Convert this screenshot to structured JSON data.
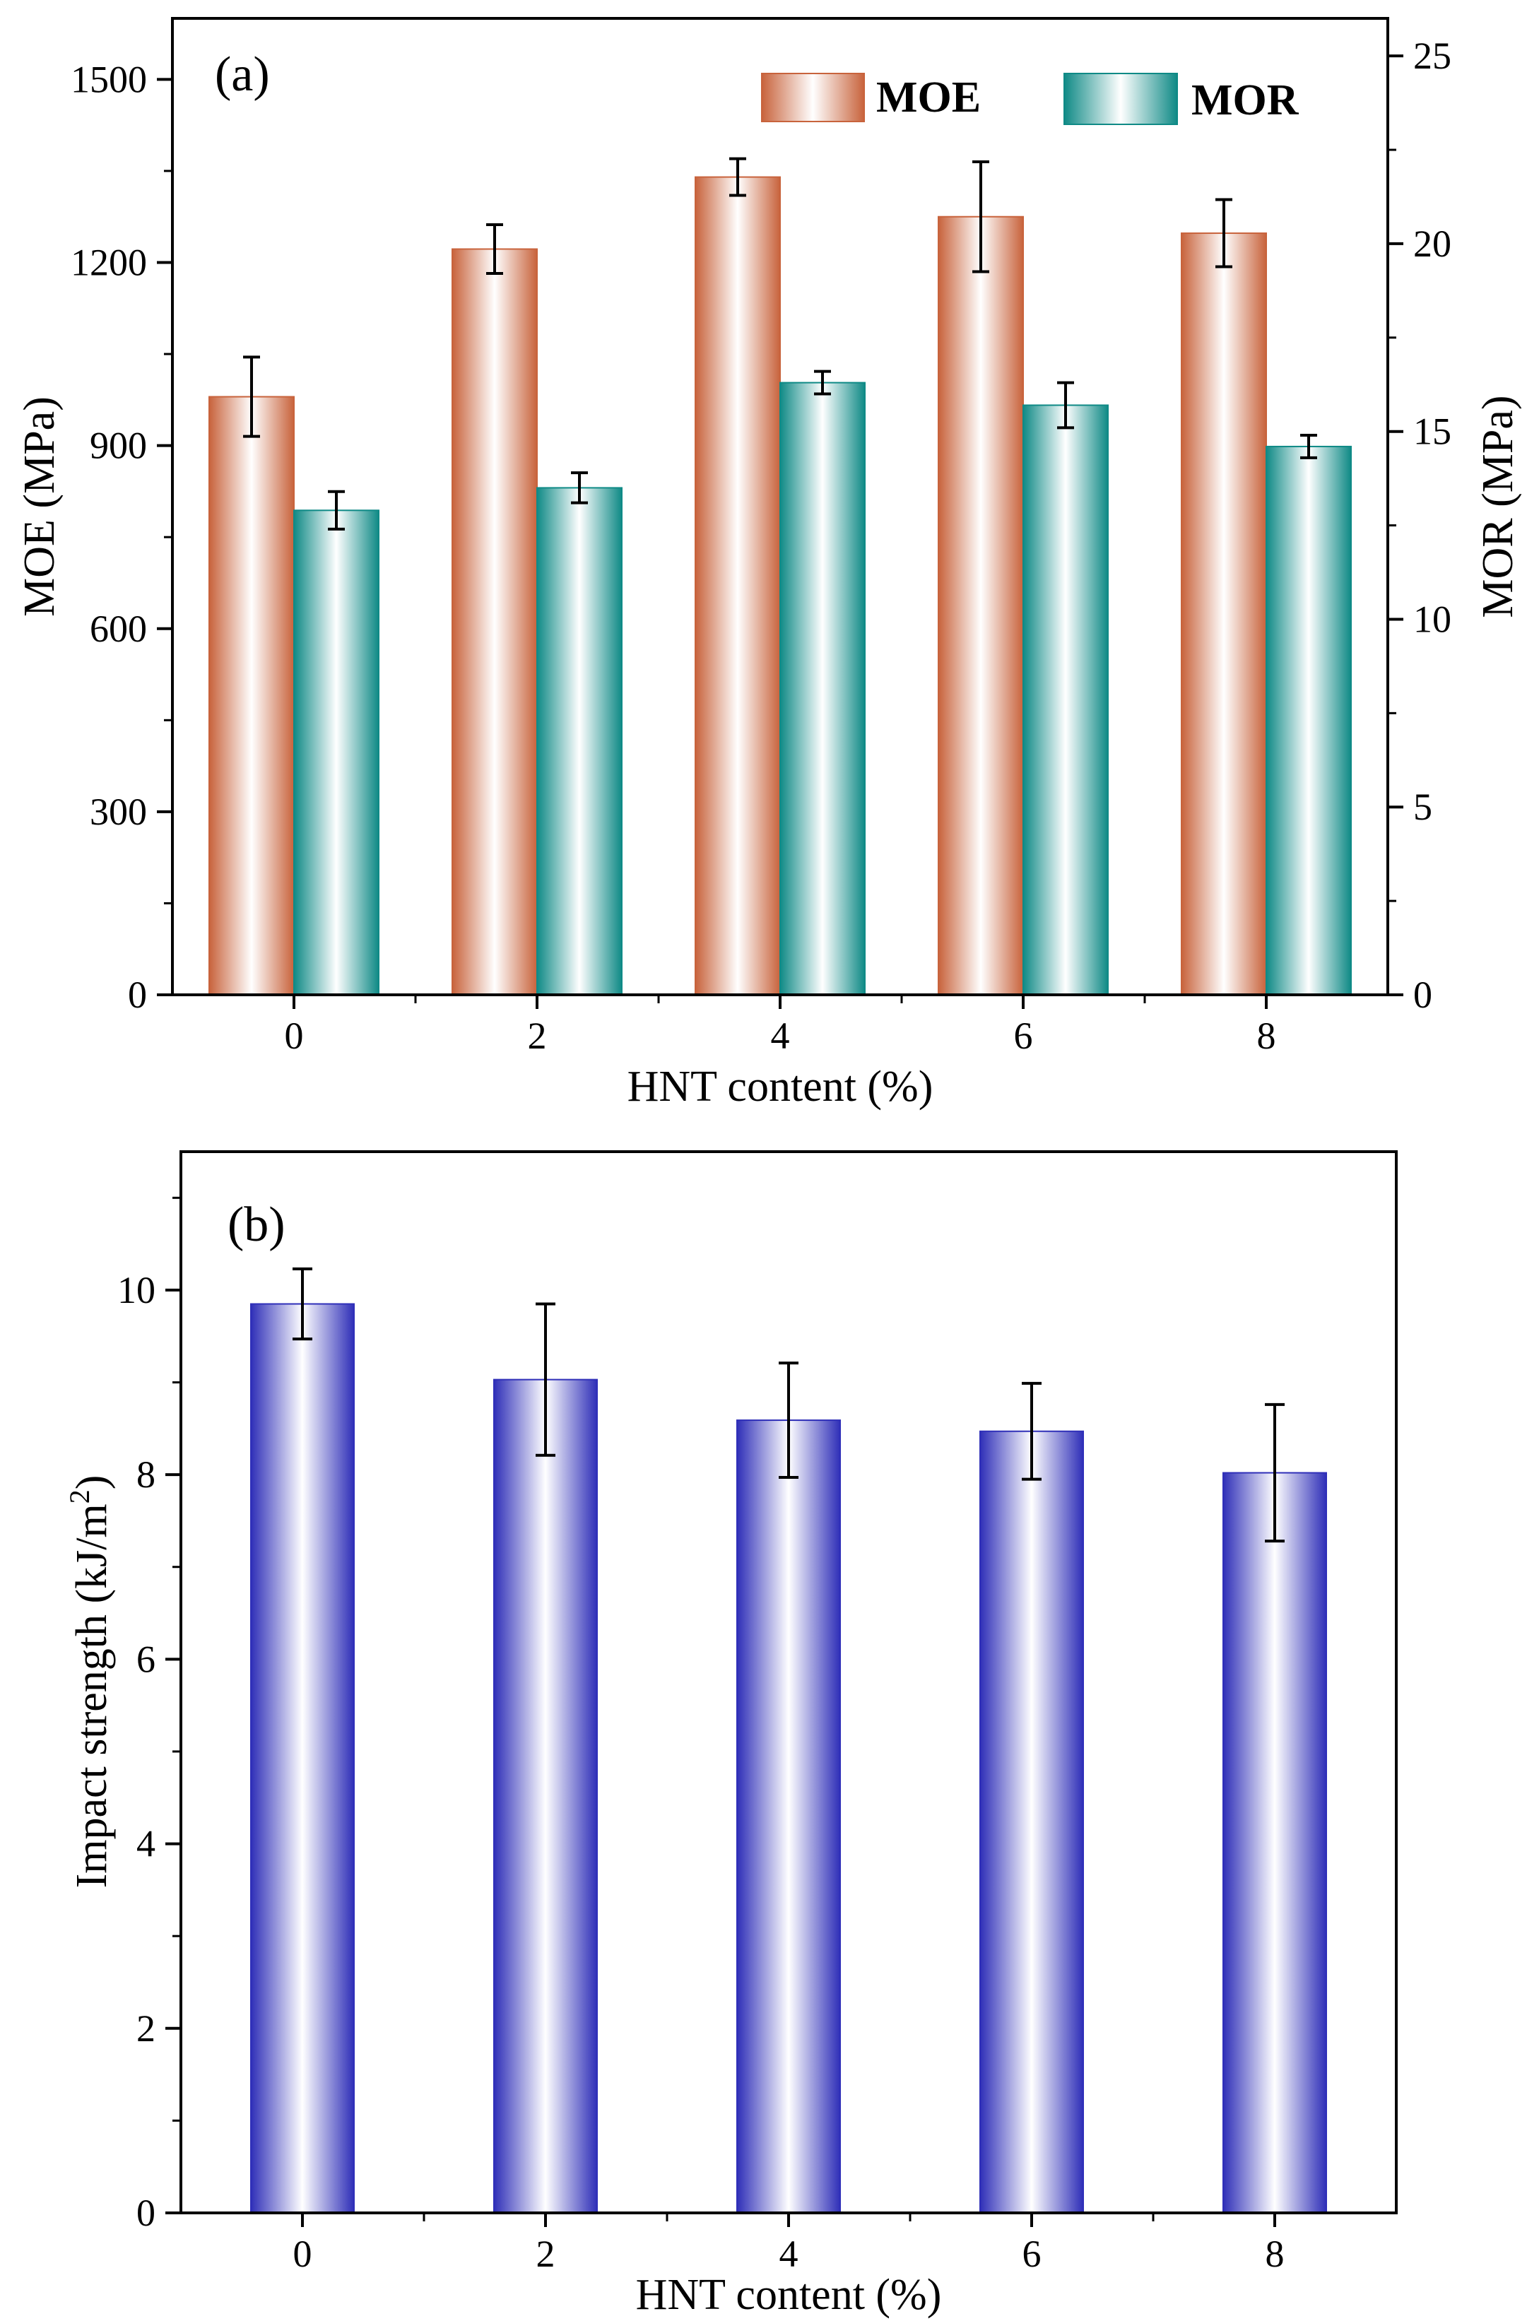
{
  "colors": {
    "moe": "#c8633c",
    "mor": "#0f8a86",
    "impact": "#2f2fb8",
    "axis": "#000000"
  },
  "chart_data": [
    {
      "type": "bar",
      "panel_label": "(a)",
      "xlabel": "HNT content (%)",
      "ylabel": "MOE (MPa)",
      "ylabel_right": "MOR (MPa)",
      "categories": [
        "0",
        "2",
        "4",
        "6",
        "8"
      ],
      "ylim": [
        0,
        1600
      ],
      "ylim_right": [
        0,
        26
      ],
      "yticks": [
        0,
        300,
        600,
        900,
        1200,
        1500
      ],
      "yticks_right": [
        0,
        5,
        10,
        15,
        20,
        25
      ],
      "legend_position": "top-right",
      "grid": false,
      "series": [
        {
          "name": "MOE",
          "axis": "left",
          "values": [
            980,
            1222,
            1340,
            1275,
            1248
          ],
          "errors": [
            65,
            40,
            30,
            90,
            55
          ]
        },
        {
          "name": "MOR",
          "axis": "right",
          "values": [
            12.9,
            13.5,
            16.3,
            15.7,
            14.6
          ],
          "errors": [
            0.5,
            0.4,
            0.3,
            0.6,
            0.3
          ]
        }
      ]
    },
    {
      "type": "bar",
      "panel_label": "(b)",
      "xlabel": "HNT content (%)",
      "ylabel": "Impact strength (kJ/m",
      "ylabel_sup": "2",
      "ylabel_close": ")",
      "categories": [
        "0",
        "2",
        "4",
        "6",
        "8"
      ],
      "ylim": [
        0,
        11.5
      ],
      "yticks": [
        0,
        2,
        4,
        6,
        8,
        10
      ],
      "grid": false,
      "series": [
        {
          "values": [
            9.85,
            9.03,
            8.59,
            8.47,
            8.02
          ],
          "errors": [
            0.38,
            0.82,
            0.62,
            0.52,
            0.74
          ]
        }
      ]
    }
  ]
}
